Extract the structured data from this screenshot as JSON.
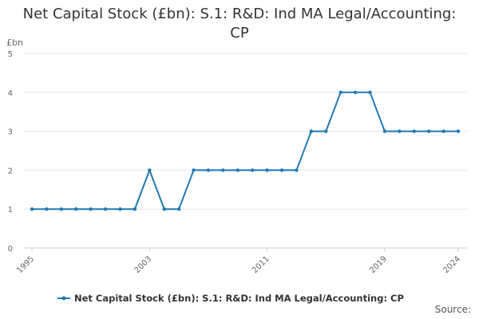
{
  "title": {
    "line1": "Net Capital Stock (£bn): S.1: R&D: Ind MA Legal/Accounting:",
    "line2": "CP"
  },
  "source_label": "Source:",
  "colors": {
    "series": "#1f78b4",
    "grid": "#e6e6e6",
    "axis": "#cccccc"
  },
  "chart_data": {
    "type": "line",
    "title": "Net Capital Stock (£bn): S.1: R&D: Ind MA Legal/Accounting: CP",
    "ylabel": "£bn",
    "xlabel": "",
    "ylim": [
      0,
      5
    ],
    "xlim": [
      1995,
      2024
    ],
    "y_ticks": [
      0,
      1,
      2,
      3,
      4,
      5
    ],
    "x_ticks": [
      1995,
      2003,
      2011,
      2019,
      2024
    ],
    "grid": "horizontal",
    "legend_position": "bottom",
    "series": [
      {
        "name": "Net Capital Stock (£bn): S.1: R&D: Ind MA Legal/Accounting: CP",
        "x": [
          1995,
          1996,
          1997,
          1998,
          1999,
          2000,
          2001,
          2002,
          2003,
          2004,
          2005,
          2006,
          2007,
          2008,
          2009,
          2010,
          2011,
          2012,
          2013,
          2014,
          2015,
          2016,
          2017,
          2018,
          2019,
          2020,
          2021,
          2022,
          2023,
          2024
        ],
        "values": [
          1,
          1,
          1,
          1,
          1,
          1,
          1,
          1,
          2,
          1,
          1,
          2,
          2,
          2,
          2,
          2,
          2,
          2,
          2,
          3,
          3,
          4,
          4,
          4,
          3,
          3,
          3,
          3,
          3,
          3
        ]
      }
    ]
  }
}
